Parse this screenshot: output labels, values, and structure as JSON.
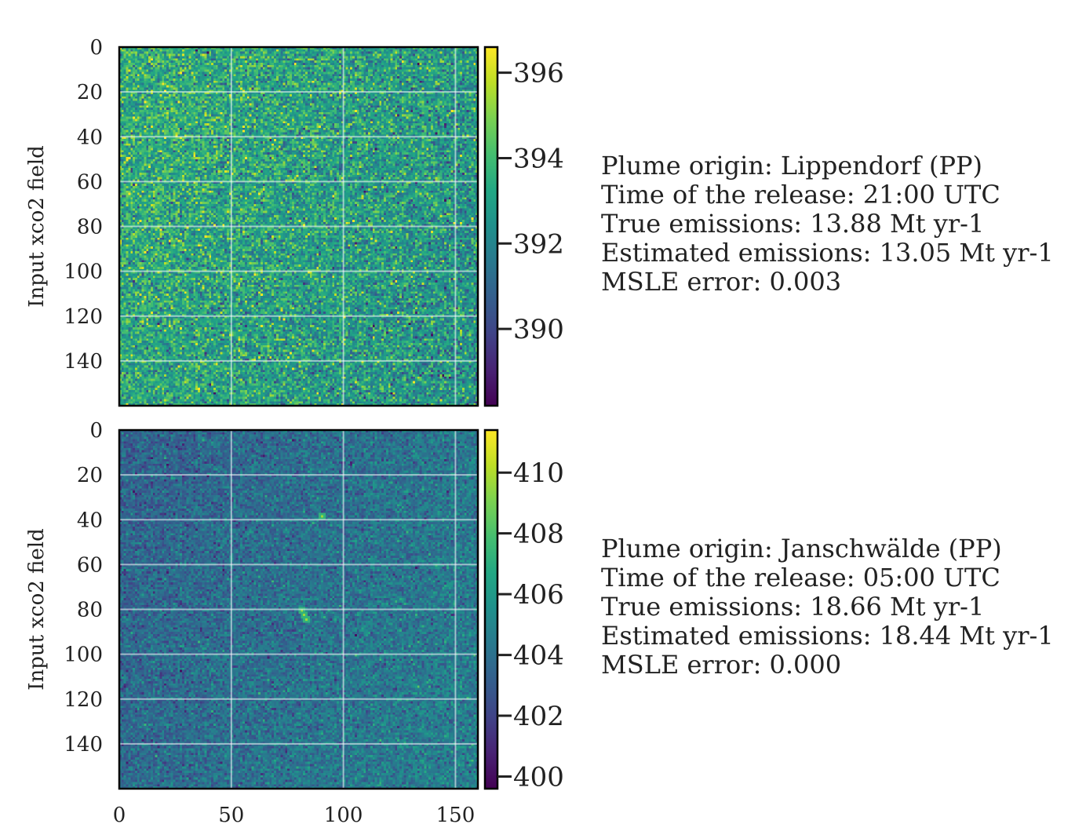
{
  "chart_data": [
    {
      "type": "heatmap",
      "title": "",
      "xlabel": "",
      "ylabel": "Input xco2 field",
      "grid": true,
      "colormap": "viridis",
      "xlim": [
        0,
        160
      ],
      "ylim": [
        160,
        0
      ],
      "x_ticks": [
        "0",
        "50",
        "100",
        "150"
      ],
      "x_tick_values": [
        0,
        50,
        100,
        150
      ],
      "y_ticks": [
        "0",
        "20",
        "40",
        "60",
        "80",
        "100",
        "120",
        "140"
      ],
      "y_tick_values": [
        0,
        20,
        40,
        60,
        80,
        100,
        120,
        140
      ],
      "colorbar": {
        "range": [
          388.2,
          396.6
        ],
        "ticks": [
          "390",
          "392",
          "394",
          "396"
        ],
        "tick_values": [
          390,
          392,
          394,
          396
        ]
      },
      "field": {
        "mean": 393.0,
        "noise": 1.2,
        "gradient": 0.8
      },
      "annotation": {
        "lines": [
          "Plume origin: Lippendorf (PP)",
          "Time of the release: 21:00 UTC",
          "True emissions:  13.88 Mt yr-1",
          "Estimated emissions:  13.05 Mt yr-1",
          "MSLE error: 0.003"
        ]
      }
    },
    {
      "type": "heatmap",
      "title": "",
      "xlabel": "",
      "ylabel": "Input xco2 field",
      "grid": true,
      "colormap": "viridis",
      "xlim": [
        0,
        160
      ],
      "ylim": [
        160,
        0
      ],
      "x_ticks": [
        "0",
        "50",
        "100",
        "150"
      ],
      "x_tick_values": [
        0,
        50,
        100,
        150
      ],
      "y_ticks": [
        "0",
        "20",
        "40",
        "60",
        "80",
        "100",
        "120",
        "140"
      ],
      "y_tick_values": [
        0,
        20,
        40,
        60,
        80,
        100,
        120,
        140
      ],
      "colorbar": {
        "range": [
          399.6,
          411.4
        ],
        "ticks": [
          "400",
          "402",
          "404",
          "406",
          "408",
          "410"
        ],
        "tick_values": [
          400,
          402,
          404,
          406,
          408,
          410
        ]
      },
      "field": {
        "mean": 404.0,
        "noise": 1.0,
        "gradient": -1.0
      },
      "plume_points": [
        [
          81,
          80
        ],
        [
          82,
          82
        ],
        [
          83,
          84
        ],
        [
          90,
          38
        ]
      ],
      "annotation": {
        "lines": [
          "Plume origin: Janschwälde (PP)",
          "Time of the release: 05:00 UTC",
          "True emissions:  18.66 Mt yr-1",
          "Estimated emissions:  18.44 Mt yr-1",
          "MSLE error: 0.000"
        ]
      }
    }
  ]
}
